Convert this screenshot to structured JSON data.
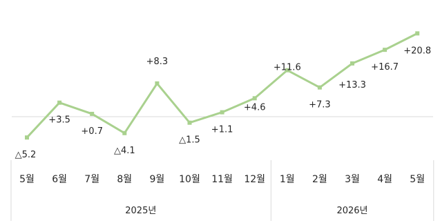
{
  "chart_data": {
    "type": "line",
    "categories": [
      "5월",
      "6월",
      "7월",
      "8월",
      "9월",
      "10월",
      "11월",
      "12월",
      "1월",
      "2월",
      "3월",
      "4월",
      "5월"
    ],
    "values": [
      -5.2,
      3.5,
      0.7,
      -4.1,
      8.3,
      -1.5,
      1.1,
      4.6,
      11.6,
      7.3,
      13.3,
      16.7,
      20.8
    ],
    "data_labels": [
      "△5.2",
      "+3.5",
      "+0.7",
      "△4.1",
      "+8.3",
      "△1.5",
      "+1.1",
      "+4.6",
      "+11.6",
      "+7.3",
      "+13.3",
      "+16.7",
      "+20.8"
    ],
    "year_groups": [
      {
        "label": "2025년",
        "count": 8
      },
      {
        "label": "2026년",
        "count": 5
      }
    ],
    "title": "",
    "xlabel": "",
    "ylabel": "",
    "ylim": [
      -10,
      25
    ],
    "grid": false,
    "legend": "none",
    "colors": {
      "line": "#a9d18e",
      "zero_line": "#d9d9d9",
      "text": "#262626",
      "axis": "#d9d9d9"
    }
  }
}
